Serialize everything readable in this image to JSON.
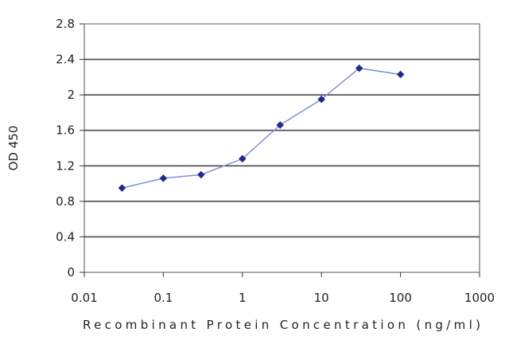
{
  "chart_data": {
    "type": "line",
    "title": "",
    "xlabel": "Recombinant Protein Concentration (ng/ml)",
    "ylabel": "OD 450",
    "x_scale": "log",
    "xlim": [
      0.01,
      1000
    ],
    "ylim": [
      0,
      2.8
    ],
    "x_ticks": [
      0.01,
      0.1,
      1,
      10,
      100,
      1000
    ],
    "x_tick_labels": [
      "0.01",
      "0.1",
      "1",
      "10",
      "100",
      "1000"
    ],
    "y_ticks": [
      0,
      0.4,
      0.8,
      1.2,
      1.6,
      2,
      2.4,
      2.8
    ],
    "y_tick_labels": [
      "0",
      "0.4",
      "0.8",
      "1.2",
      "1.6",
      "2",
      "2.4",
      "2.8"
    ],
    "grid": "horizontal",
    "legend": "none",
    "series": [
      {
        "color": "#1f2a8a",
        "x": [
          0.03,
          0.1,
          0.3,
          1,
          3,
          10,
          30,
          100
        ],
        "y": [
          0.95,
          1.06,
          1.1,
          1.28,
          1.66,
          1.95,
          2.3,
          2.23
        ]
      }
    ]
  }
}
